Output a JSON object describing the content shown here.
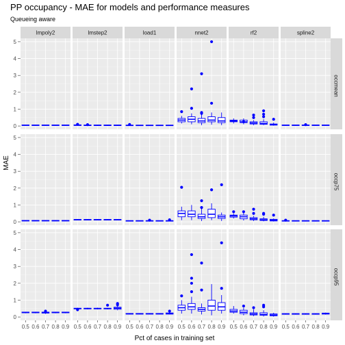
{
  "chart_data": {
    "type": "boxplot-facet-grid",
    "title": "PP occupancy - MAE for models and performance measures",
    "subtitle": "Queueing aware",
    "xlabel": "Pct of cases in training set",
    "ylabel": "MAE",
    "columns": [
      "lmpoly2",
      "lmstep2",
      "load1",
      "nnet2",
      "rf2",
      "spline2"
    ],
    "rows": [
      "occmean",
      "occp75",
      "occp95"
    ],
    "x_categories": [
      "0.5",
      "0.6",
      "0.7",
      "0.8",
      "0.9"
    ],
    "y_ticks": [
      0,
      1,
      2,
      3,
      4,
      5
    ],
    "ylim": [
      -0.2,
      5.2
    ],
    "colors": {
      "box": "#0000ff",
      "panel_bg": "#ebebeb",
      "grid_major": "#ffffff",
      "strip_bg": "#d9d9d9"
    },
    "cells": {
      "occmean": {
        "lmpoly2": {
          "q": [
            [
              0.03,
              0.04,
              0.05,
              0.06,
              0.07
            ],
            [
              0.03,
              0.04,
              0.05,
              0.06,
              0.07
            ],
            [
              0.03,
              0.04,
              0.05,
              0.06,
              0.07
            ],
            [
              0.03,
              0.04,
              0.05,
              0.06,
              0.07
            ],
            [
              0.03,
              0.04,
              0.05,
              0.06,
              0.07
            ]
          ],
          "out": [
            [],
            [],
            [],
            [],
            []
          ]
        },
        "lmstep2": {
          "q": [
            [
              0.02,
              0.03,
              0.05,
              0.07,
              0.09
            ],
            [
              0.02,
              0.03,
              0.04,
              0.06,
              0.08
            ],
            [
              0.02,
              0.03,
              0.04,
              0.06,
              0.08
            ],
            [
              0.02,
              0.03,
              0.04,
              0.06,
              0.08
            ],
            [
              0.02,
              0.03,
              0.04,
              0.06,
              0.08
            ]
          ],
          "out": [
            [
              0.1
            ],
            [
              0.08
            ],
            [],
            [],
            []
          ]
        },
        "load1": {
          "q": [
            [
              0.02,
              0.03,
              0.04,
              0.05,
              0.06
            ],
            [
              0.02,
              0.03,
              0.04,
              0.05,
              0.06
            ],
            [
              0.02,
              0.03,
              0.04,
              0.05,
              0.06
            ],
            [
              0.02,
              0.03,
              0.04,
              0.05,
              0.06
            ],
            [
              0.02,
              0.03,
              0.04,
              0.05,
              0.06
            ]
          ],
          "out": [
            [
              0.09
            ],
            [],
            [],
            [],
            []
          ]
        },
        "nnet2": {
          "q": [
            [
              0.15,
              0.25,
              0.35,
              0.45,
              0.6
            ],
            [
              0.1,
              0.25,
              0.4,
              0.55,
              0.75
            ],
            [
              0.05,
              0.2,
              0.3,
              0.45,
              0.7
            ],
            [
              0.08,
              0.25,
              0.35,
              0.55,
              0.8
            ],
            [
              0.05,
              0.2,
              0.3,
              0.5,
              0.8
            ]
          ],
          "out": [
            [
              0.85
            ],
            [
              2.2,
              1.05
            ],
            [
              3.1,
              0.8,
              0.75
            ],
            [
              5.0,
              1.35
            ],
            []
          ]
        },
        "rf2": {
          "q": [
            [
              0.15,
              0.25,
              0.3,
              0.35,
              0.45
            ],
            [
              0.1,
              0.2,
              0.25,
              0.35,
              0.45
            ],
            [
              0.05,
              0.12,
              0.18,
              0.25,
              0.35
            ],
            [
              0.05,
              0.1,
              0.15,
              0.25,
              0.4
            ],
            [
              0.02,
              0.05,
              0.08,
              0.12,
              0.2
            ]
          ],
          "out": [
            [],
            [
              0.25
            ],
            [
              0.65,
              0.5
            ],
            [
              0.9,
              0.7,
              0.55
            ],
            [
              0.4
            ]
          ]
        },
        "spline2": {
          "q": [
            [
              0.03,
              0.04,
              0.05,
              0.06,
              0.07
            ],
            [
              0.03,
              0.04,
              0.05,
              0.06,
              0.07
            ],
            [
              0.03,
              0.04,
              0.05,
              0.06,
              0.07
            ],
            [
              0.03,
              0.04,
              0.05,
              0.06,
              0.07
            ],
            [
              0.03,
              0.04,
              0.05,
              0.06,
              0.07
            ]
          ],
          "out": [
            [],
            [],
            [
              0.08
            ],
            [],
            []
          ]
        }
      },
      "occp75": {
        "lmpoly2": {
          "q": [
            [
              0.05,
              0.06,
              0.07,
              0.08,
              0.09
            ],
            [
              0.05,
              0.06,
              0.07,
              0.08,
              0.09
            ],
            [
              0.05,
              0.06,
              0.07,
              0.08,
              0.09
            ],
            [
              0.05,
              0.06,
              0.07,
              0.08,
              0.09
            ],
            [
              0.05,
              0.06,
              0.07,
              0.08,
              0.09
            ]
          ],
          "out": [
            [],
            [],
            [],
            [],
            []
          ]
        },
        "lmstep2": {
          "q": [
            [
              0.1,
              0.12,
              0.13,
              0.14,
              0.16
            ],
            [
              0.1,
              0.12,
              0.13,
              0.14,
              0.16
            ],
            [
              0.1,
              0.12,
              0.13,
              0.14,
              0.16
            ],
            [
              0.1,
              0.12,
              0.13,
              0.14,
              0.16
            ],
            [
              0.1,
              0.12,
              0.13,
              0.14,
              0.16
            ]
          ],
          "out": [
            [],
            [],
            [],
            [],
            []
          ]
        },
        "load1": {
          "q": [
            [
              0.04,
              0.05,
              0.06,
              0.07,
              0.08
            ],
            [
              0.04,
              0.05,
              0.06,
              0.07,
              0.08
            ],
            [
              0.04,
              0.05,
              0.06,
              0.07,
              0.08
            ],
            [
              0.04,
              0.05,
              0.06,
              0.07,
              0.08
            ],
            [
              0.04,
              0.05,
              0.06,
              0.07,
              0.08
            ]
          ],
          "out": [
            [],
            [],
            [
              0.1
            ],
            [],
            [
              0.12
            ]
          ]
        },
        "nnet2": {
          "q": [
            [
              0.1,
              0.3,
              0.5,
              0.65,
              0.9
            ],
            [
              0.1,
              0.3,
              0.45,
              0.65,
              1.0
            ],
            [
              0.05,
              0.2,
              0.3,
              0.45,
              0.8
            ],
            [
              0.1,
              0.25,
              0.45,
              0.75,
              1.1
            ],
            [
              0.05,
              0.2,
              0.3,
              0.4,
              0.55
            ]
          ],
          "out": [
            [
              2.05
            ],
            [],
            [
              1.25,
              0.85
            ],
            [
              1.9
            ],
            [
              2.2
            ]
          ]
        },
        "rf2": {
          "q": [
            [
              0.2,
              0.28,
              0.35,
              0.4,
              0.5
            ],
            [
              0.08,
              0.18,
              0.3,
              0.4,
              0.55
            ],
            [
              0.05,
              0.12,
              0.18,
              0.25,
              0.35
            ],
            [
              0.03,
              0.08,
              0.12,
              0.18,
              0.3
            ],
            [
              0.02,
              0.05,
              0.1,
              0.15,
              0.2
            ]
          ],
          "out": [
            [
              0.6
            ],
            [
              0.6
            ],
            [
              0.75,
              0.5
            ],
            [
              0.5,
              0.45
            ],
            [
              0.4
            ]
          ]
        },
        "spline2": {
          "q": [
            [
              0.04,
              0.05,
              0.06,
              0.07,
              0.08
            ],
            [
              0.04,
              0.05,
              0.06,
              0.07,
              0.08
            ],
            [
              0.04,
              0.05,
              0.06,
              0.07,
              0.08
            ],
            [
              0.04,
              0.05,
              0.06,
              0.07,
              0.08
            ],
            [
              0.04,
              0.05,
              0.06,
              0.07,
              0.08
            ]
          ],
          "out": [
            [
              0.1
            ],
            [],
            [],
            [],
            []
          ]
        }
      },
      "occp95": {
        "lmpoly2": {
          "q": [
            [
              0.22,
              0.25,
              0.27,
              0.29,
              0.31
            ],
            [
              0.22,
              0.25,
              0.27,
              0.29,
              0.31
            ],
            [
              0.18,
              0.23,
              0.26,
              0.29,
              0.33
            ],
            [
              0.22,
              0.25,
              0.27,
              0.29,
              0.31
            ],
            [
              0.22,
              0.25,
              0.27,
              0.29,
              0.31
            ]
          ],
          "out": [
            [],
            [],
            [
              0.35
            ],
            [],
            []
          ]
        },
        "lmstep2": {
          "q": [
            [
              0.45,
              0.48,
              0.5,
              0.52,
              0.55
            ],
            [
              0.45,
              0.48,
              0.5,
              0.52,
              0.55
            ],
            [
              0.45,
              0.48,
              0.5,
              0.52,
              0.55
            ],
            [
              0.45,
              0.48,
              0.5,
              0.52,
              0.55
            ],
            [
              0.4,
              0.46,
              0.52,
              0.58,
              0.65
            ]
          ],
          "out": [
            [
              0.43
            ],
            [],
            [],
            [
              0.7
            ],
            [
              0.8,
              0.72
            ]
          ]
        },
        "load1": {
          "q": [
            [
              0.15,
              0.17,
              0.19,
              0.21,
              0.23
            ],
            [
              0.15,
              0.17,
              0.19,
              0.21,
              0.23
            ],
            [
              0.15,
              0.17,
              0.19,
              0.21,
              0.23
            ],
            [
              0.15,
              0.17,
              0.19,
              0.21,
              0.23
            ],
            [
              0.15,
              0.17,
              0.2,
              0.24,
              0.28
            ]
          ],
          "out": [
            [],
            [],
            [],
            [],
            [
              0.35
            ]
          ]
        },
        "nnet2": {
          "q": [
            [
              0.2,
              0.4,
              0.55,
              0.7,
              1.0
            ],
            [
              0.2,
              0.45,
              0.6,
              0.8,
              1.2
            ],
            [
              0.15,
              0.35,
              0.45,
              0.55,
              0.8
            ],
            [
              0.1,
              0.4,
              0.65,
              1.0,
              1.95
            ],
            [
              0.2,
              0.4,
              0.6,
              0.85,
              1.3
            ]
          ],
          "out": [
            [
              1.25
            ],
            [
              3.7,
              2.3,
              2.0,
              1.5
            ],
            [
              3.2,
              1.6
            ],
            [],
            [
              4.4,
              1.7
            ]
          ]
        },
        "rf2": {
          "q": [
            [
              0.2,
              0.28,
              0.35,
              0.45,
              0.65
            ],
            [
              0.1,
              0.2,
              0.28,
              0.4,
              0.55
            ],
            [
              0.05,
              0.12,
              0.18,
              0.25,
              0.45
            ],
            [
              0.03,
              0.1,
              0.15,
              0.25,
              0.4
            ],
            [
              0.02,
              0.07,
              0.12,
              0.18,
              0.25
            ]
          ],
          "out": [
            [],
            [
              0.65
            ],
            [
              0.55
            ],
            [
              0.7,
              0.6
            ],
            []
          ]
        },
        "spline2": {
          "q": [
            [
              0.14,
              0.16,
              0.18,
              0.2,
              0.22
            ],
            [
              0.14,
              0.16,
              0.18,
              0.2,
              0.22
            ],
            [
              0.14,
              0.16,
              0.18,
              0.2,
              0.22
            ],
            [
              0.14,
              0.16,
              0.18,
              0.2,
              0.22
            ],
            [
              0.14,
              0.17,
              0.2,
              0.23,
              0.26
            ]
          ],
          "out": [
            [],
            [],
            [],
            [],
            []
          ]
        }
      }
    }
  }
}
